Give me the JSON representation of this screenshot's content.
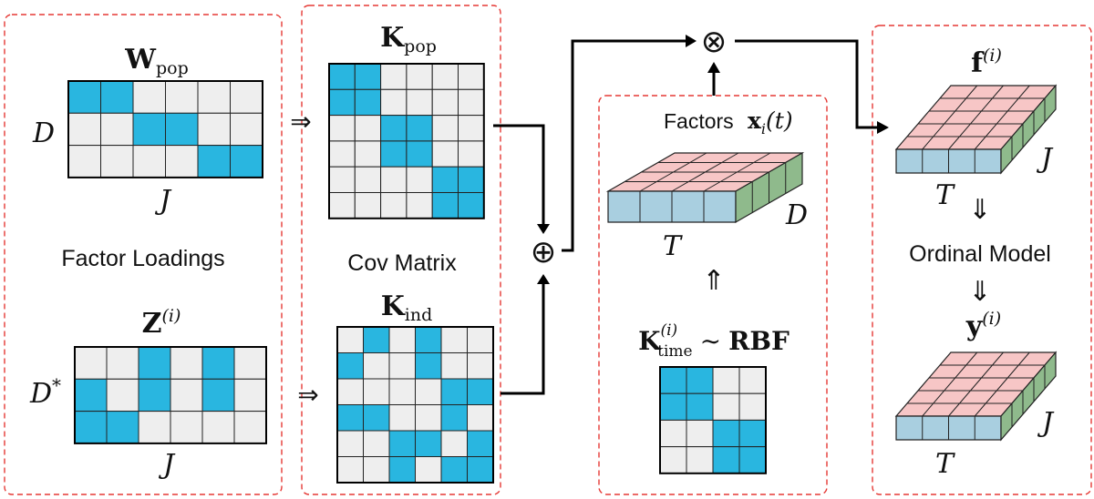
{
  "colors": {
    "filled": "#29b6e0",
    "empty": "#eeeeee",
    "top": "#f7c6c6",
    "front": "#a9cfe0",
    "side": "#8fba8c",
    "panel_border": "#e53935"
  },
  "panel1": {
    "caption": "Factor Loadings",
    "w_symbol": "W",
    "w_sub": "pop",
    "w_row_label": "D",
    "w_col_label": "J",
    "w_matrix": [
      [
        1,
        1,
        0,
        0,
        0,
        0
      ],
      [
        0,
        0,
        1,
        1,
        0,
        0
      ],
      [
        0,
        0,
        0,
        0,
        1,
        1
      ]
    ],
    "z_symbol": "Z",
    "z_sup": "(i)",
    "z_row_label": "D",
    "z_row_sup": "*",
    "z_col_label": "J",
    "z_matrix": [
      [
        0,
        0,
        1,
        0,
        1,
        0
      ],
      [
        1,
        0,
        1,
        0,
        1,
        0
      ],
      [
        1,
        1,
        0,
        0,
        0,
        0
      ]
    ]
  },
  "panel2": {
    "caption": "Cov Matrix",
    "kpop_symbol": "K",
    "kpop_sub": "pop",
    "kpop_matrix": [
      [
        1,
        1,
        0,
        0,
        0,
        0
      ],
      [
        1,
        1,
        0,
        0,
        0,
        0
      ],
      [
        0,
        0,
        1,
        1,
        0,
        0
      ],
      [
        0,
        0,
        1,
        1,
        0,
        0
      ],
      [
        0,
        0,
        0,
        0,
        1,
        1
      ],
      [
        0,
        0,
        0,
        0,
        1,
        1
      ]
    ],
    "kind_symbol": "K",
    "kind_sub": "ind",
    "kind_matrix": [
      [
        0,
        1,
        0,
        1,
        0,
        0
      ],
      [
        1,
        0,
        0,
        1,
        0,
        0
      ],
      [
        0,
        0,
        0,
        0,
        1,
        1
      ],
      [
        1,
        1,
        0,
        0,
        1,
        0
      ],
      [
        0,
        0,
        1,
        1,
        0,
        1
      ],
      [
        0,
        0,
        1,
        0,
        1,
        1
      ]
    ]
  },
  "ops": {
    "oplus": "⊕",
    "otimes": "⊗",
    "implies_right": "⇒",
    "implies_up": "⇑",
    "implies_down": "⇓"
  },
  "panel3": {
    "factors_text": "Factors",
    "x_symbol": "x",
    "x_sub": "i",
    "x_arg": "(t)",
    "cube_depth_label": "D",
    "cube_time_label": "T",
    "ktime_symbol": "K",
    "ktime_sup": "(i)",
    "ktime_sub": "time",
    "tilde": "∼",
    "rbf": "RBF",
    "ktime_matrix": [
      [
        1,
        1,
        0,
        0
      ],
      [
        1,
        1,
        0,
        0
      ],
      [
        0,
        0,
        1,
        1
      ],
      [
        0,
        0,
        1,
        1
      ]
    ]
  },
  "panel4": {
    "f_symbol": "f",
    "f_sup": "(i)",
    "f_j_label": "J",
    "f_t_label": "T",
    "ordinal_caption": "Ordinal Model",
    "y_symbol": "y",
    "y_sup": "(i)",
    "y_j_label": "J",
    "y_t_label": "T"
  }
}
